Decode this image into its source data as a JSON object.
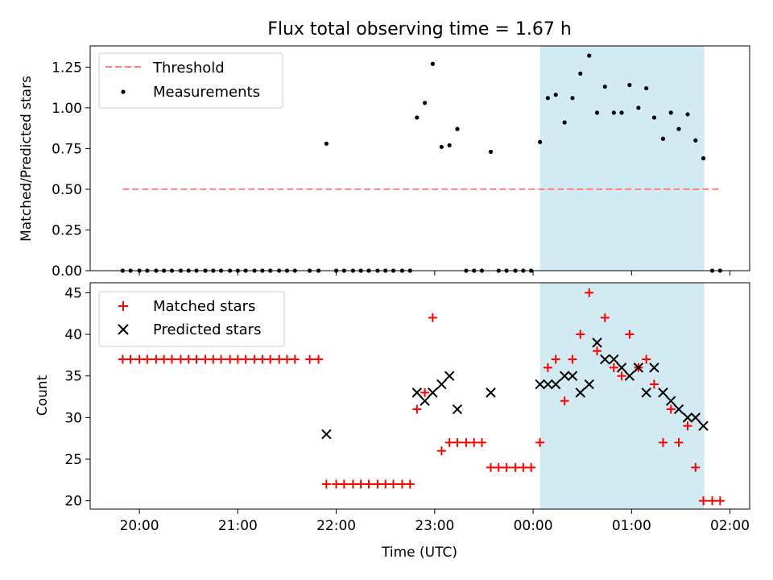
{
  "chart_data": {
    "title": "Flux total observing time = 1.67 h",
    "xlabel": "Time (UTC)",
    "x_unit": "hours UTC (24+ means after midnight)",
    "xlim": [
      19.5,
      26.2
    ],
    "xticks": [
      {
        "value": 20,
        "label": "20:00"
      },
      {
        "value": 21,
        "label": "21:00"
      },
      {
        "value": 22,
        "label": "22:00"
      },
      {
        "value": 23,
        "label": "23:00"
      },
      {
        "value": 24,
        "label": "00:00"
      },
      {
        "value": 25,
        "label": "01:00"
      },
      {
        "value": 26,
        "label": "02:00"
      }
    ],
    "highlight_span": [
      24.07,
      25.74
    ],
    "highlight_color": "#add8e6",
    "panels": [
      {
        "type": "scatter",
        "ylabel": "Matched/Predicted stars",
        "ylim": [
          0,
          1.38
        ],
        "yticks": [
          {
            "value": 0,
            "label": "0.00"
          },
          {
            "value": 0.25,
            "label": "0.25"
          },
          {
            "value": 0.5,
            "label": "0.50"
          },
          {
            "value": 0.75,
            "label": "0.75"
          },
          {
            "value": 1.0,
            "label": "1.00"
          },
          {
            "value": 1.25,
            "label": "1.25"
          }
        ],
        "legend": {
          "position": "top-left",
          "items": [
            {
              "label": "Threshold",
              "kind": "dashed-line",
              "color": "#ff7f7f"
            },
            {
              "label": "Measurements",
              "kind": "dot",
              "color": "#000000"
            }
          ]
        },
        "threshold": {
          "value": 0.5,
          "x_range": [
            19.83,
            25.9
          ],
          "color": "#ff7f7f"
        },
        "measurements": [
          [
            19.83,
            0
          ],
          [
            19.91,
            0
          ],
          [
            20.0,
            0
          ],
          [
            20.08,
            0
          ],
          [
            20.17,
            0
          ],
          [
            20.25,
            0
          ],
          [
            20.33,
            0
          ],
          [
            20.42,
            0
          ],
          [
            20.5,
            0
          ],
          [
            20.58,
            0
          ],
          [
            20.67,
            0
          ],
          [
            20.75,
            0
          ],
          [
            20.83,
            0
          ],
          [
            20.92,
            0
          ],
          [
            21.0,
            0
          ],
          [
            21.08,
            0
          ],
          [
            21.17,
            0
          ],
          [
            21.25,
            0
          ],
          [
            21.33,
            0
          ],
          [
            21.42,
            0
          ],
          [
            21.5,
            0
          ],
          [
            21.58,
            0
          ],
          [
            21.73,
            0
          ],
          [
            21.82,
            0
          ],
          [
            21.9,
            0.78
          ],
          [
            22.0,
            0
          ],
          [
            22.08,
            0
          ],
          [
            22.17,
            0
          ],
          [
            22.25,
            0
          ],
          [
            22.33,
            0
          ],
          [
            22.42,
            0
          ],
          [
            22.5,
            0
          ],
          [
            22.58,
            0
          ],
          [
            22.67,
            0
          ],
          [
            22.75,
            0
          ],
          [
            22.82,
            0.94
          ],
          [
            22.9,
            1.03
          ],
          [
            22.98,
            1.27
          ],
          [
            23.07,
            0.76
          ],
          [
            23.15,
            0.77
          ],
          [
            23.23,
            0.87
          ],
          [
            23.32,
            0
          ],
          [
            23.4,
            0
          ],
          [
            23.48,
            0
          ],
          [
            23.57,
            0.73
          ],
          [
            23.65,
            0
          ],
          [
            23.73,
            0
          ],
          [
            23.82,
            0
          ],
          [
            23.9,
            0
          ],
          [
            23.98,
            0
          ],
          [
            24.07,
            0.79
          ],
          [
            24.15,
            1.06
          ],
          [
            24.23,
            1.08
          ],
          [
            24.32,
            0.91
          ],
          [
            24.4,
            1.06
          ],
          [
            24.48,
            1.21
          ],
          [
            24.57,
            1.32
          ],
          [
            24.65,
            0.97
          ],
          [
            24.73,
            1.13
          ],
          [
            24.82,
            0.97
          ],
          [
            24.9,
            0.97
          ],
          [
            24.98,
            1.14
          ],
          [
            25.07,
            1.0
          ],
          [
            25.15,
            1.12
          ],
          [
            25.23,
            0.94
          ],
          [
            25.32,
            0.81
          ],
          [
            25.4,
            0.97
          ],
          [
            25.48,
            0.87
          ],
          [
            25.57,
            0.96
          ],
          [
            25.65,
            0.8
          ],
          [
            25.73,
            0.69
          ],
          [
            25.82,
            0
          ],
          [
            25.9,
            0
          ]
        ]
      },
      {
        "type": "scatter",
        "ylabel": "Count",
        "ylim": [
          19,
          46.2
        ],
        "yticks": [
          {
            "value": 20,
            "label": "20"
          },
          {
            "value": 25,
            "label": "25"
          },
          {
            "value": 30,
            "label": "30"
          },
          {
            "value": 35,
            "label": "35"
          },
          {
            "value": 40,
            "label": "40"
          },
          {
            "value": 45,
            "label": "45"
          }
        ],
        "legend": {
          "position": "top-left",
          "items": [
            {
              "label": "Matched stars",
              "kind": "plus",
              "color": "#ff0000"
            },
            {
              "label": "Predicted stars",
              "kind": "x",
              "color": "#000000"
            }
          ]
        },
        "series": [
          {
            "name": "Matched stars",
            "marker": "plus",
            "color": "#ff0000",
            "points": [
              [
                19.83,
                37
              ],
              [
                19.91,
                37
              ],
              [
                20.0,
                37
              ],
              [
                20.08,
                37
              ],
              [
                20.17,
                37
              ],
              [
                20.25,
                37
              ],
              [
                20.33,
                37
              ],
              [
                20.42,
                37
              ],
              [
                20.5,
                37
              ],
              [
                20.58,
                37
              ],
              [
                20.67,
                37
              ],
              [
                20.75,
                37
              ],
              [
                20.83,
                37
              ],
              [
                20.92,
                37
              ],
              [
                21.0,
                37
              ],
              [
                21.08,
                37
              ],
              [
                21.17,
                37
              ],
              [
                21.25,
                37
              ],
              [
                21.33,
                37
              ],
              [
                21.42,
                37
              ],
              [
                21.5,
                37
              ],
              [
                21.58,
                37
              ],
              [
                21.73,
                37
              ],
              [
                21.82,
                37
              ],
              [
                21.9,
                22
              ],
              [
                22.0,
                22
              ],
              [
                22.08,
                22
              ],
              [
                22.17,
                22
              ],
              [
                22.25,
                22
              ],
              [
                22.33,
                22
              ],
              [
                22.42,
                22
              ],
              [
                22.5,
                22
              ],
              [
                22.58,
                22
              ],
              [
                22.67,
                22
              ],
              [
                22.75,
                22
              ],
              [
                22.82,
                31
              ],
              [
                22.9,
                33
              ],
              [
                22.98,
                42
              ],
              [
                23.07,
                26
              ],
              [
                23.15,
                27
              ],
              [
                23.23,
                27
              ],
              [
                23.32,
                27
              ],
              [
                23.4,
                27
              ],
              [
                23.48,
                27
              ],
              [
                23.57,
                24
              ],
              [
                23.65,
                24
              ],
              [
                23.73,
                24
              ],
              [
                23.82,
                24
              ],
              [
                23.9,
                24
              ],
              [
                23.98,
                24
              ],
              [
                24.07,
                27
              ],
              [
                24.15,
                36
              ],
              [
                24.23,
                37
              ],
              [
                24.32,
                32
              ],
              [
                24.4,
                37
              ],
              [
                24.48,
                40
              ],
              [
                24.57,
                45
              ],
              [
                24.65,
                38
              ],
              [
                24.73,
                42
              ],
              [
                24.82,
                36
              ],
              [
                24.9,
                35
              ],
              [
                24.98,
                40
              ],
              [
                25.07,
                36
              ],
              [
                25.15,
                37
              ],
              [
                25.23,
                34
              ],
              [
                25.32,
                27
              ],
              [
                25.4,
                31
              ],
              [
                25.48,
                27
              ],
              [
                25.57,
                29
              ],
              [
                25.65,
                24
              ],
              [
                25.73,
                20
              ],
              [
                25.82,
                20
              ],
              [
                25.9,
                20
              ]
            ]
          },
          {
            "name": "Predicted stars",
            "marker": "x",
            "color": "#000000",
            "points": [
              [
                21.9,
                28
              ],
              [
                22.82,
                33
              ],
              [
                22.9,
                32
              ],
              [
                22.98,
                33
              ],
              [
                23.07,
                34
              ],
              [
                23.15,
                35
              ],
              [
                23.23,
                31
              ],
              [
                23.57,
                33
              ],
              [
                24.07,
                34
              ],
              [
                24.15,
                34
              ],
              [
                24.23,
                34
              ],
              [
                24.32,
                35
              ],
              [
                24.4,
                35
              ],
              [
                24.48,
                33
              ],
              [
                24.57,
                34
              ],
              [
                24.65,
                39
              ],
              [
                24.73,
                37
              ],
              [
                24.82,
                37
              ],
              [
                24.9,
                36
              ],
              [
                24.98,
                35
              ],
              [
                25.07,
                36
              ],
              [
                25.15,
                33
              ],
              [
                25.23,
                36
              ],
              [
                25.32,
                33
              ],
              [
                25.4,
                32
              ],
              [
                25.48,
                31
              ],
              [
                25.57,
                30
              ],
              [
                25.65,
                30
              ],
              [
                25.73,
                29
              ]
            ]
          }
        ]
      }
    ]
  }
}
